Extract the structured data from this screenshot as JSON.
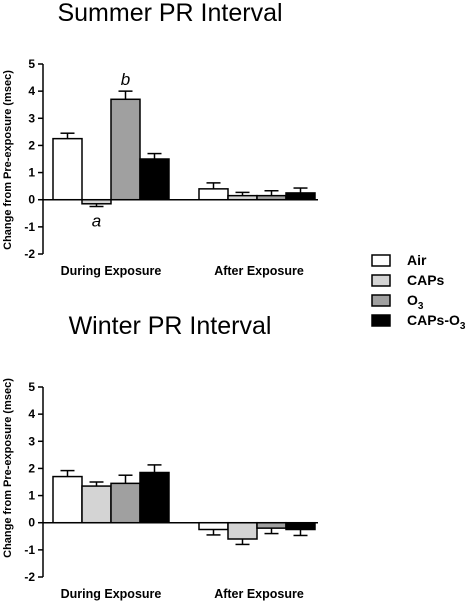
{
  "chart_data": [
    {
      "type": "bar",
      "title": "Summer PR Interval",
      "ylabel": "Change from Pre-exposure (msec)",
      "ylim": [
        -2,
        5
      ],
      "yticks": [
        -2,
        -1,
        0,
        1,
        2,
        3,
        4,
        5
      ],
      "categories": [
        "During Exposure",
        "After Exposure"
      ],
      "series": [
        {
          "name": "Air",
          "values": [
            2.25,
            0.4
          ],
          "errors": [
            0.2,
            0.22
          ]
        },
        {
          "name": "CAPs",
          "values": [
            -0.15,
            0.15
          ],
          "errors": [
            0.1,
            0.12
          ]
        },
        {
          "name": "O3",
          "values": [
            3.7,
            0.15
          ],
          "errors": [
            0.3,
            0.18
          ]
        },
        {
          "name": "CAPs-O3",
          "values": [
            1.5,
            0.25
          ],
          "errors": [
            0.2,
            0.18
          ]
        }
      ],
      "annotations": [
        {
          "text": "a",
          "category": 0,
          "series": 1
        },
        {
          "text": "b",
          "category": 0,
          "series": 2
        }
      ]
    },
    {
      "type": "bar",
      "title": "Winter PR Interval",
      "ylabel": "Change from Pre-exposure (msec)",
      "ylim": [
        -2,
        5
      ],
      "yticks": [
        -2,
        -1,
        0,
        1,
        2,
        3,
        4,
        5
      ],
      "categories": [
        "During Exposure",
        "After Exposure"
      ],
      "series": [
        {
          "name": "Air",
          "values": [
            1.7,
            -0.25
          ],
          "errors": [
            0.22,
            0.2
          ]
        },
        {
          "name": "CAPs",
          "values": [
            1.35,
            -0.6
          ],
          "errors": [
            0.15,
            0.2
          ]
        },
        {
          "name": "O3",
          "values": [
            1.45,
            -0.2
          ],
          "errors": [
            0.3,
            0.2
          ]
        },
        {
          "name": "CAPs-O3",
          "values": [
            1.85,
            -0.25
          ],
          "errors": [
            0.28,
            0.22
          ]
        }
      ],
      "annotations": []
    }
  ],
  "legend": {
    "position": "right",
    "entries": [
      {
        "label": "Air",
        "fill": "#ffffff"
      },
      {
        "label": "CAPs",
        "fill": "#d4d4d4"
      },
      {
        "label": "O",
        "sub": "3",
        "fill": "#a0a0a0"
      },
      {
        "label": "CAPs-O",
        "sub": "3",
        "fill": "#000000"
      }
    ]
  },
  "series_fills": [
    "#ffffff",
    "#d4d4d4",
    "#a0a0a0",
    "#000000"
  ]
}
